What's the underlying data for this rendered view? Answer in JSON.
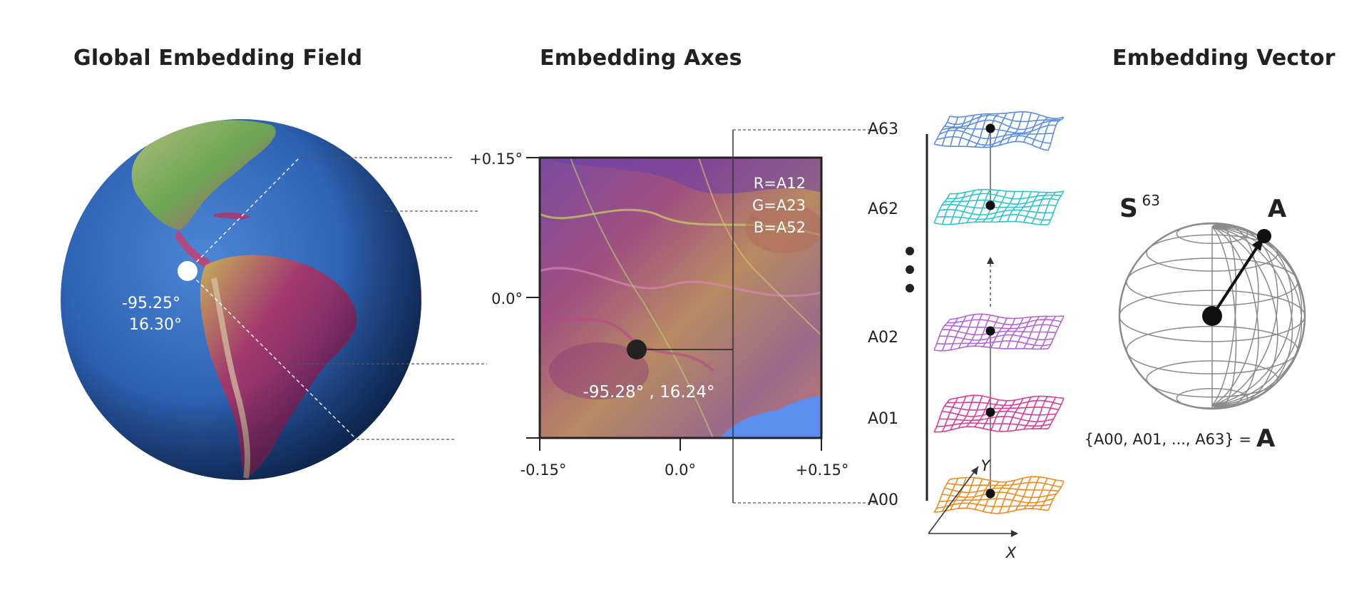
{
  "titles": {
    "global": "Global Embedding Field",
    "axes": "Embedding Axes",
    "vector": "Embedding Vector"
  },
  "globe": {
    "coord_lon": "-95.25°",
    "coord_lat": "16.30°"
  },
  "axes_panel": {
    "y_ticks": [
      "+0.15°",
      "0.0°"
    ],
    "x_ticks": [
      "-0.15°",
      "0.0°",
      "+0.15°"
    ],
    "rgb_legend": [
      "R=A12",
      "G=A23",
      "B=A52"
    ],
    "point_label": "-95.28° , 16.24°"
  },
  "layers": {
    "labels": [
      "A63",
      "A62",
      "A02",
      "A01",
      "A00"
    ],
    "colors": [
      "#5b8ee0",
      "#2fc4cc",
      "#b565d6",
      "#d83d9a",
      "#ee8a1e"
    ],
    "axis_y": "Y",
    "axis_x": "X"
  },
  "vector": {
    "sphere_label": "S",
    "sphere_exp": "63",
    "point_label": "A",
    "formula": "{A00, A01, ..., A63} =",
    "formula_bold": "A"
  }
}
